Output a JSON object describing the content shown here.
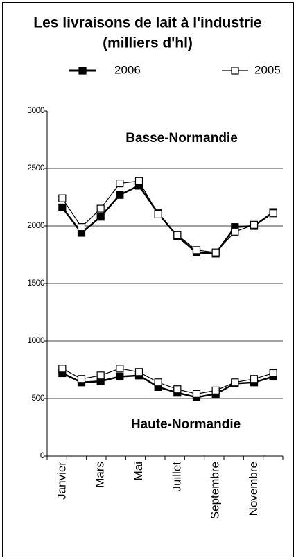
{
  "chart_data": {
    "type": "line",
    "title": "Les livraisons de lait à l'industrie",
    "subtitle": "(milliers d'hl)",
    "categories": [
      "Janvier",
      null,
      "Mars",
      null,
      "Mai",
      null,
      "Juillet",
      null,
      "Septembre",
      null,
      "Novembre",
      null
    ],
    "ylim": [
      0,
      3000
    ],
    "yticks": [
      0,
      500,
      1000,
      1500,
      2000,
      2500,
      3000
    ],
    "grid": true,
    "panels": [
      {
        "label": "Basse-Normandie",
        "series": [
          {
            "name": "2006",
            "color": "#000000",
            "marker": "filled",
            "values": [
              2160,
              1940,
              2080,
              2270,
              2350,
              2110,
              1910,
              1770,
              1760,
              1990,
              2000,
              2120
            ]
          },
          {
            "name": "2005",
            "color": "#000000",
            "marker": "open",
            "values": [
              2240,
              1990,
              2150,
              2370,
              2390,
              2100,
              1920,
              1790,
              1770,
              1950,
              2010,
              2110
            ]
          }
        ]
      },
      {
        "label": "Haute-Normandie",
        "series": [
          {
            "color": "#000000",
            "marker": "filled",
            "values": [
              720,
              640,
              650,
              690,
              700,
              600,
              550,
              510,
              540,
              630,
              640,
              690
            ]
          },
          {
            "color": "#000000",
            "marker": "open",
            "values": [
              760,
              670,
              700,
              760,
              730,
              640,
              580,
              540,
              570,
              640,
              670,
              720
            ]
          }
        ]
      }
    ]
  }
}
